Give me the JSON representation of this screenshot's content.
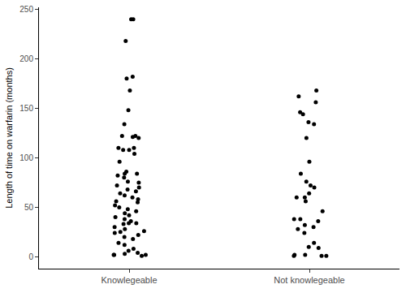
{
  "chart_data": {
    "type": "strip",
    "categories": [
      "Knowlegeable",
      "Not knowlegeable"
    ],
    "values": [
      [
        240,
        240,
        218,
        182,
        180,
        168,
        148,
        134,
        122,
        121,
        120,
        110,
        122,
        108,
        108,
        110,
        104,
        96,
        86,
        84,
        84,
        82,
        80,
        76,
        75,
        72,
        70,
        68,
        66,
        64,
        62,
        60,
        58,
        56,
        55,
        52,
        50,
        48,
        46,
        44,
        42,
        40,
        38,
        36,
        34,
        34,
        33,
        30,
        28,
        26,
        25,
        24,
        22,
        20,
        18,
        14,
        12,
        8,
        6,
        4,
        3,
        2,
        2,
        2,
        1
      ],
      [
        168,
        162,
        156,
        146,
        144,
        136,
        134,
        120,
        96,
        84,
        76,
        72,
        70,
        64,
        60,
        60,
        56,
        46,
        38,
        38,
        36,
        32,
        30,
        28,
        24,
        14,
        10,
        9,
        2,
        2,
        1,
        1,
        1
      ]
    ],
    "y_label": "Length of time on warfarin (months)",
    "ylim": [
      -12,
      252
    ],
    "yticks": [
      0,
      50,
      100,
      150,
      200,
      250
    ],
    "color": "#000000",
    "grid": false
  }
}
